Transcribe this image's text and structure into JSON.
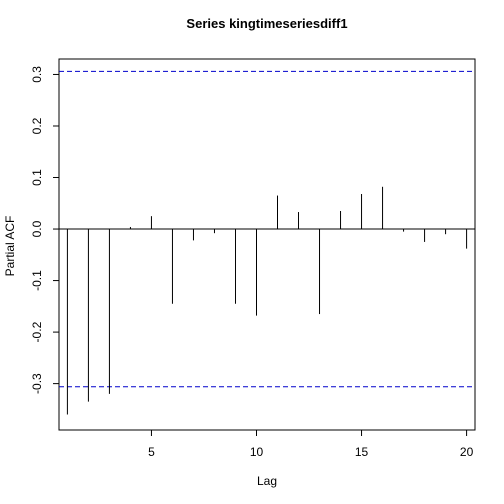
{
  "chart_data": {
    "type": "bar",
    "title": "Series  kingtimeseriesdiff1",
    "xlabel": "Lag",
    "ylabel": "Partial ACF",
    "xlim": [
      0.6,
      20.4
    ],
    "ylim": [
      -0.39,
      0.33
    ],
    "xticks": [
      5,
      10,
      15,
      20
    ],
    "xtick_labels": [
      "5",
      "10",
      "15",
      "20"
    ],
    "yticks": [
      -0.3,
      -0.2,
      -0.1,
      0.0,
      0.1,
      0.2,
      0.3
    ],
    "ytick_labels": [
      "-0.3",
      "-0.2",
      "-0.1",
      "0.0",
      "0.1",
      "0.2",
      "0.3"
    ],
    "x": [
      1,
      2,
      3,
      4,
      5,
      6,
      7,
      8,
      9,
      10,
      11,
      12,
      13,
      14,
      15,
      16,
      17,
      18,
      19,
      20
    ],
    "values": [
      -0.36,
      -0.335,
      -0.32,
      0.004,
      0.025,
      -0.145,
      -0.022,
      -0.008,
      -0.145,
      -0.168,
      0.065,
      0.033,
      -0.165,
      0.035,
      0.068,
      0.082,
      -0.005,
      -0.025,
      -0.01,
      -0.038
    ],
    "confidence_bound": 0.306,
    "bound_color": "#0000CC",
    "grid": false,
    "legend": "none"
  }
}
